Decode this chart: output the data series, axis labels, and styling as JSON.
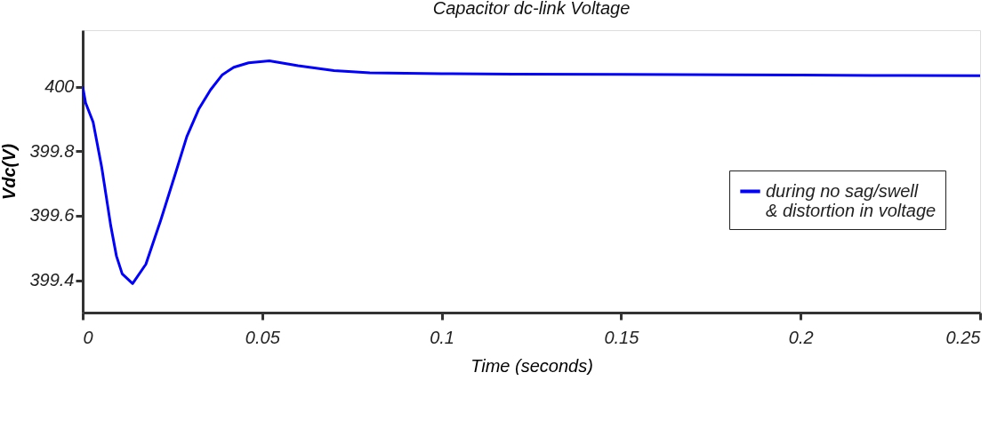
{
  "chart_data": {
    "type": "line",
    "title": "Capacitor dc-link Voltage",
    "xlabel": "Time (seconds)",
    "ylabel": "Vdc(V)",
    "xlim": [
      0,
      0.25
    ],
    "xticks": [
      0,
      0.05,
      0.1,
      0.15,
      0.2,
      0.25
    ],
    "ylim": [
      399.3,
      400.175
    ],
    "yticks": [
      399.4,
      399.6,
      399.8,
      400
    ],
    "grid": false,
    "legend": "bottom right",
    "marker": "none",
    "line_style": "solid",
    "series": [
      {
        "name": "during no sag/swell\n& distortion in voltage",
        "color": "#0000ff",
        "x": [
          0,
          0.0008,
          0.0029,
          0.0053,
          0.0078,
          0.0094,
          0.011,
          0.0139,
          0.0176,
          0.0217,
          0.0258,
          0.029,
          0.0323,
          0.0356,
          0.0389,
          0.0421,
          0.0462,
          0.052,
          0.06,
          0.07,
          0.08,
          0.1,
          0.12,
          0.15,
          0.18,
          0.2,
          0.22,
          0.25
        ],
        "values": [
          400.0,
          399.95,
          399.89,
          399.75,
          399.57,
          399.475,
          399.42,
          399.39,
          399.45,
          399.585,
          399.73,
          399.845,
          399.93,
          399.99,
          400.037,
          400.06,
          400.074,
          400.08,
          400.065,
          400.05,
          400.043,
          400.04,
          400.039,
          400.038,
          400.037,
          400.036,
          400.035,
          400.034
        ]
      }
    ]
  }
}
